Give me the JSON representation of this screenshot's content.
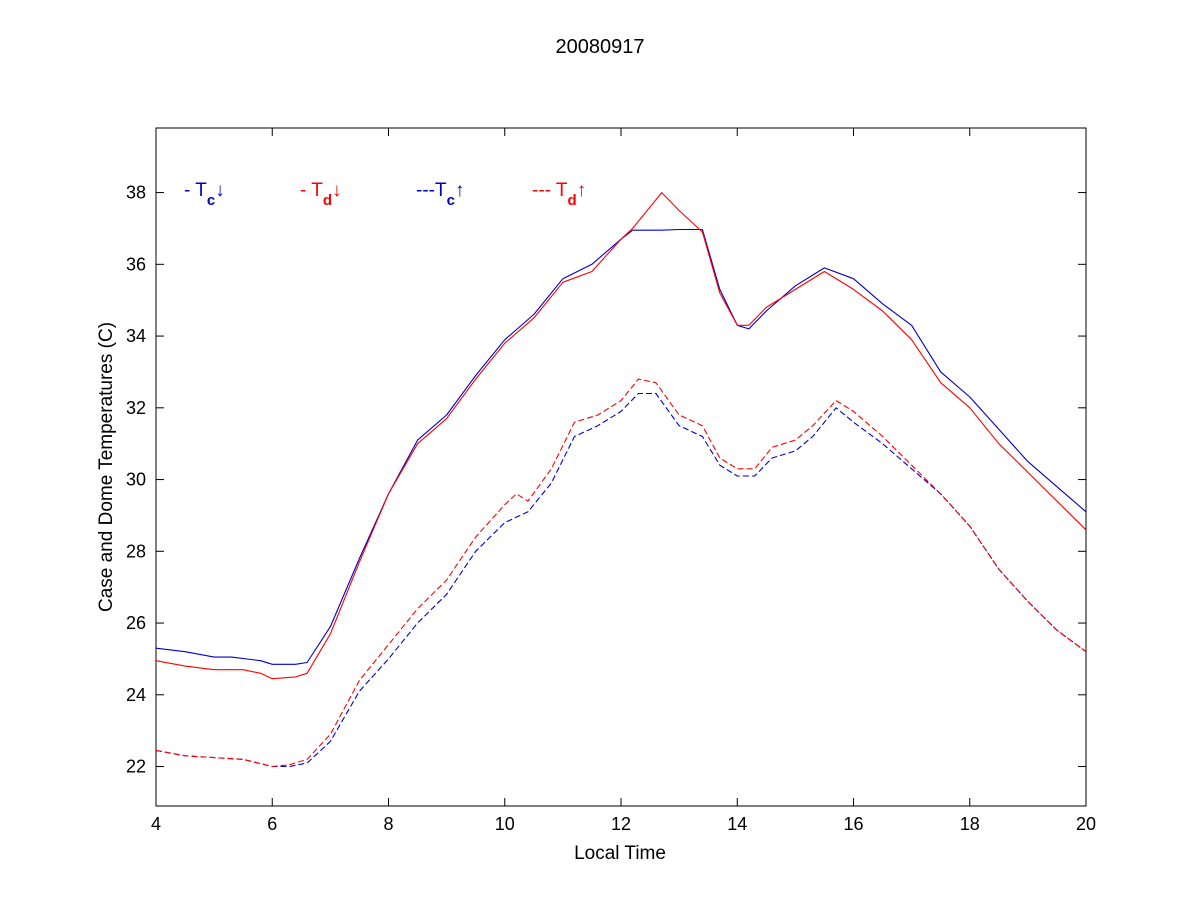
{
  "chart_data": {
    "type": "line",
    "title": "20080917",
    "xlabel": "Local Time",
    "ylabel": "Case and Dome Temperatures (C)",
    "xlim": [
      4,
      20
    ],
    "ylim": [
      20.9,
      39.8
    ],
    "xticks": [
      4,
      6,
      8,
      10,
      12,
      14,
      16,
      18,
      20
    ],
    "yticks": [
      22,
      24,
      26,
      28,
      30,
      32,
      34,
      36,
      38
    ],
    "grid": false,
    "legend_position": "top-left",
    "series": [
      {
        "name": "- Tc↓",
        "legend": {
          "prefix": "- T",
          "sub": "c",
          "arrow": "↓"
        },
        "color": "#0000cc",
        "dash": "solid",
        "x": [
          4.0,
          4.5,
          5.0,
          5.3,
          5.8,
          6.0,
          6.4,
          6.6,
          7.0,
          7.5,
          8.0,
          8.5,
          9.0,
          9.5,
          10.0,
          10.5,
          11.0,
          11.5,
          12.0,
          12.2,
          12.7,
          13.0,
          13.4,
          13.7,
          14.0,
          14.2,
          14.5,
          15.0,
          15.5,
          16.0,
          16.5,
          17.0,
          17.5,
          18.0,
          18.5,
          19.0,
          19.5,
          20.0
        ],
        "y": [
          25.3,
          25.2,
          25.05,
          25.05,
          24.95,
          24.85,
          24.85,
          24.9,
          25.9,
          27.8,
          29.6,
          31.1,
          31.8,
          32.9,
          33.9,
          34.6,
          35.6,
          36.0,
          36.7,
          36.95,
          36.95,
          36.97,
          36.97,
          35.3,
          34.3,
          34.2,
          34.7,
          35.4,
          35.9,
          35.6,
          34.9,
          34.3,
          33.0,
          32.3,
          31.4,
          30.5,
          29.8,
          29.1
        ]
      },
      {
        "name": "- Td↓",
        "legend": {
          "prefix": "- T",
          "sub": "d",
          "arrow": "↓"
        },
        "color": "#ff0000",
        "dash": "solid",
        "x": [
          4.0,
          4.5,
          5.0,
          5.5,
          5.8,
          6.0,
          6.4,
          6.6,
          7.0,
          7.5,
          8.0,
          8.5,
          9.0,
          9.5,
          10.0,
          10.5,
          11.0,
          11.5,
          12.0,
          12.2,
          12.7,
          13.0,
          13.4,
          13.7,
          14.0,
          14.2,
          14.5,
          15.0,
          15.5,
          16.0,
          16.5,
          17.0,
          17.5,
          18.0,
          18.5,
          19.0,
          19.5,
          20.0
        ],
        "y": [
          24.95,
          24.8,
          24.7,
          24.7,
          24.6,
          24.45,
          24.5,
          24.6,
          25.7,
          27.7,
          29.6,
          31.0,
          31.7,
          32.8,
          33.8,
          34.5,
          35.5,
          35.8,
          36.7,
          37.0,
          38.0,
          37.5,
          36.9,
          35.2,
          34.3,
          34.3,
          34.8,
          35.3,
          35.8,
          35.3,
          34.7,
          33.9,
          32.7,
          32.0,
          31.0,
          30.2,
          29.4,
          28.6
        ]
      },
      {
        "name": "---Tc↑",
        "legend": {
          "prefix": "---T",
          "sub": "c",
          "arrow": "↑"
        },
        "color": "#0000cc",
        "dash": "dashed",
        "x": [
          4.0,
          4.5,
          5.0,
          5.5,
          6.0,
          6.3,
          6.6,
          7.0,
          7.5,
          8.0,
          8.5,
          9.0,
          9.5,
          10.0,
          10.4,
          10.8,
          11.2,
          11.6,
          12.0,
          12.3,
          12.6,
          13.0,
          13.4,
          13.7,
          14.0,
          14.3,
          14.6,
          15.0,
          15.3,
          15.7,
          16.0,
          16.5,
          17.0,
          17.5,
          18.0,
          18.5,
          19.0,
          19.5,
          20.0
        ],
        "y": [
          22.45,
          22.3,
          22.25,
          22.2,
          22.0,
          22.0,
          22.1,
          22.7,
          24.1,
          25.0,
          26.0,
          26.8,
          28.0,
          28.8,
          29.1,
          29.9,
          31.2,
          31.5,
          31.9,
          32.4,
          32.4,
          31.5,
          31.2,
          30.4,
          30.1,
          30.1,
          30.6,
          30.8,
          31.2,
          32.0,
          31.6,
          31.0,
          30.3,
          29.6,
          28.7,
          27.5,
          26.6,
          25.8,
          25.2
        ]
      },
      {
        "name": "--- Td↑",
        "legend": {
          "prefix": "--- T",
          "sub": "d",
          "arrow": "↑"
        },
        "color": "#ff0000",
        "dash": "dashed",
        "x": [
          4.0,
          4.5,
          5.0,
          5.5,
          6.0,
          6.3,
          6.6,
          7.0,
          7.5,
          8.0,
          8.5,
          9.0,
          9.5,
          10.0,
          10.2,
          10.4,
          10.8,
          11.2,
          11.6,
          12.0,
          12.3,
          12.6,
          13.0,
          13.4,
          13.7,
          14.0,
          14.3,
          14.6,
          15.0,
          15.3,
          15.7,
          16.0,
          16.5,
          17.0,
          17.5,
          18.0,
          18.5,
          19.0,
          19.5,
          20.0
        ],
        "y": [
          22.45,
          22.3,
          22.25,
          22.2,
          22.0,
          22.05,
          22.2,
          22.9,
          24.4,
          25.4,
          26.4,
          27.2,
          28.4,
          29.3,
          29.6,
          29.4,
          30.3,
          31.6,
          31.8,
          32.2,
          32.8,
          32.7,
          31.8,
          31.5,
          30.6,
          30.3,
          30.3,
          30.9,
          31.1,
          31.5,
          32.2,
          31.9,
          31.2,
          30.4,
          29.6,
          28.7,
          27.5,
          26.6,
          25.8,
          25.2
        ]
      }
    ]
  }
}
